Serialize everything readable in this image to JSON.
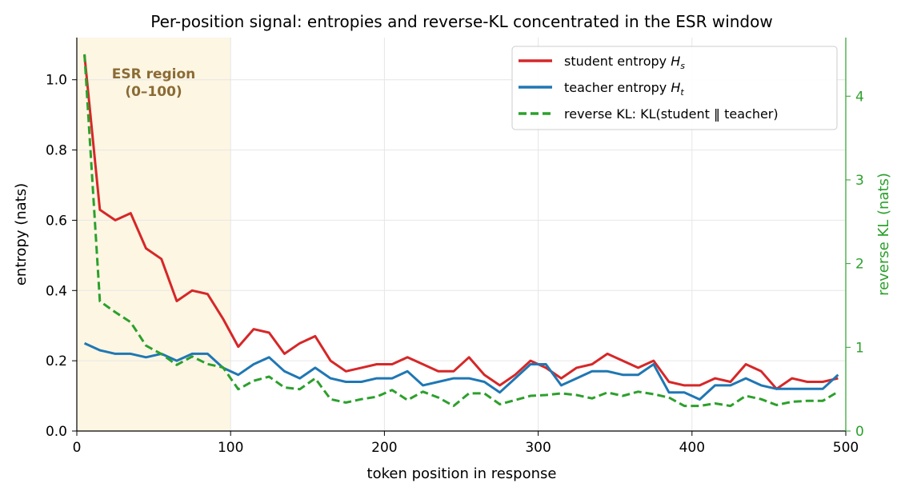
{
  "chart_data": {
    "type": "line",
    "title": "Per-position signal: entropies and reverse-KL concentrated in the ESR window",
    "xlabel": "token position in response",
    "ylabel": "entropy (nats)",
    "ylabel_right": "reverse KL (nats)",
    "xlim": [
      0,
      500
    ],
    "ylim": [
      0,
      1.12
    ],
    "ylim_right": [
      0,
      4.7
    ],
    "x_ticks": [
      0,
      100,
      200,
      300,
      400,
      500
    ],
    "y_ticks": [
      0.0,
      0.2,
      0.4,
      0.6,
      0.8,
      1.0
    ],
    "y_ticks_right": [
      0,
      1,
      2,
      3,
      4
    ],
    "grid": true,
    "legend_position": "top-right",
    "shaded_region": {
      "x_start": 0,
      "x_end": 100,
      "label_line1": "ESR region",
      "label_line2": "(0–100)",
      "fill_color": "#fdf6e3",
      "text_color": "#8b6b35"
    },
    "right_axis_color": "#2ca02c",
    "x": [
      5,
      15,
      25,
      35,
      45,
      55,
      65,
      75,
      85,
      95,
      105,
      115,
      125,
      135,
      145,
      155,
      165,
      175,
      185,
      195,
      205,
      215,
      225,
      235,
      245,
      255,
      265,
      275,
      285,
      295,
      305,
      315,
      325,
      335,
      345,
      355,
      365,
      375,
      385,
      395,
      405,
      415,
      425,
      435,
      445,
      455,
      465,
      475,
      485,
      495
    ],
    "series": [
      {
        "name": "student entropy",
        "name_sub": "s",
        "axis": "left",
        "style": "solid",
        "color": "#d62728",
        "values": [
          1.07,
          0.63,
          0.6,
          0.62,
          0.52,
          0.49,
          0.37,
          0.4,
          0.39,
          0.32,
          0.24,
          0.29,
          0.28,
          0.22,
          0.25,
          0.27,
          0.2,
          0.17,
          0.18,
          0.19,
          0.19,
          0.21,
          0.19,
          0.17,
          0.17,
          0.21,
          0.16,
          0.13,
          0.16,
          0.2,
          0.18,
          0.15,
          0.18,
          0.19,
          0.22,
          0.2,
          0.18,
          0.2,
          0.14,
          0.13,
          0.13,
          0.15,
          0.14,
          0.19,
          0.17,
          0.12,
          0.15,
          0.14,
          0.14,
          0.15
        ]
      },
      {
        "name": "teacher entropy",
        "name_sub": "t",
        "axis": "left",
        "style": "solid",
        "color": "#1f77b4",
        "values": [
          0.25,
          0.23,
          0.22,
          0.22,
          0.21,
          0.22,
          0.2,
          0.22,
          0.22,
          0.18,
          0.16,
          0.19,
          0.21,
          0.17,
          0.15,
          0.18,
          0.15,
          0.14,
          0.14,
          0.15,
          0.15,
          0.17,
          0.13,
          0.14,
          0.15,
          0.15,
          0.14,
          0.11,
          0.15,
          0.19,
          0.19,
          0.13,
          0.15,
          0.17,
          0.17,
          0.16,
          0.16,
          0.19,
          0.11,
          0.11,
          0.09,
          0.13,
          0.13,
          0.15,
          0.13,
          0.12,
          0.12,
          0.12,
          0.12,
          0.16
        ]
      },
      {
        "name": "reverse KL: KL(student ‖ teacher)",
        "axis": "right",
        "style": "dashed",
        "color": "#2ca02c",
        "values": [
          4.5,
          1.55,
          1.42,
          1.3,
          1.02,
          0.92,
          0.79,
          0.89,
          0.8,
          0.76,
          0.5,
          0.6,
          0.65,
          0.52,
          0.5,
          0.63,
          0.38,
          0.34,
          0.38,
          0.41,
          0.49,
          0.37,
          0.47,
          0.4,
          0.3,
          0.45,
          0.45,
          0.32,
          0.37,
          0.42,
          0.43,
          0.45,
          0.43,
          0.39,
          0.46,
          0.42,
          0.47,
          0.44,
          0.4,
          0.3,
          0.3,
          0.33,
          0.3,
          0.42,
          0.38,
          0.31,
          0.35,
          0.36,
          0.36,
          0.47
        ]
      }
    ]
  }
}
